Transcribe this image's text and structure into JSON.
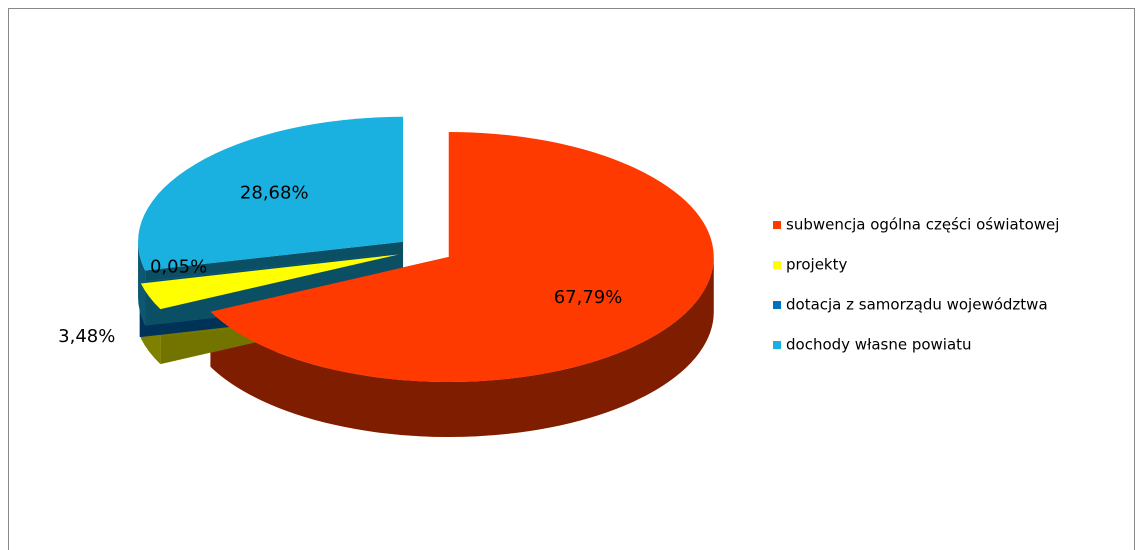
{
  "chart_data": {
    "type": "pie",
    "categories": [
      "subwencja ogólna części oświatowej",
      "projekty",
      "dotacja z samorządu województwa",
      "dochody własne powiatu"
    ],
    "values": [
      67.79,
      3.48,
      0.05,
      28.68
    ],
    "value_labels": [
      "67,79%",
      "3,48%",
      "0,05%",
      "28,68%"
    ],
    "colors": [
      "#ff3a00",
      "#ffff00",
      "#0070c0",
      "#1ab0e0"
    ],
    "legend": "right"
  }
}
